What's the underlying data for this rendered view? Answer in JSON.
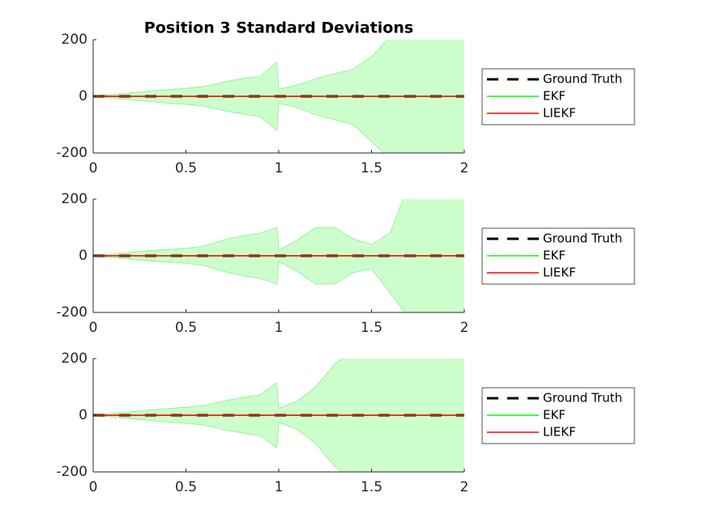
{
  "chart_data": [
    {
      "type": "line",
      "title": "Position 3 Standard Deviations",
      "x": [
        0,
        0.1,
        0.2,
        0.3,
        0.4,
        0.5,
        0.6,
        0.7,
        0.8,
        0.9,
        0.99,
        1.0,
        1.1,
        1.2,
        1.3,
        1.4,
        1.5,
        1.6,
        1.7,
        1.8,
        1.9,
        2.0
      ],
      "xlim": [
        0,
        2
      ],
      "xticks": [
        0,
        0.5,
        1,
        1.5,
        2
      ],
      "ylim": [
        -200,
        200
      ],
      "yticks": [
        -200,
        0,
        200
      ],
      "series": [
        {
          "name": "Ground Truth",
          "color": "#000000",
          "line_style": "dashed",
          "values": [
            0,
            0,
            0,
            0,
            0,
            0,
            0,
            0,
            0,
            0,
            0,
            0,
            0,
            0,
            0,
            0,
            0,
            0,
            0,
            0,
            0,
            0
          ]
        },
        {
          "name": "EKF",
          "color": "#00ff00",
          "band_color": "#ccffcc",
          "values": [
            0,
            0,
            0,
            0,
            0,
            0,
            0,
            0,
            0,
            0,
            0,
            0,
            0,
            0,
            0,
            0,
            0,
            0,
            0,
            0,
            0,
            0
          ],
          "upper": [
            2,
            6,
            12,
            18,
            24,
            28,
            35,
            50,
            62,
            70,
            120,
            25,
            40,
            62,
            80,
            95,
            140,
            210,
            230,
            260,
            300,
            350
          ],
          "lower": [
            -2,
            -6,
            -12,
            -18,
            -24,
            -28,
            -35,
            -50,
            -62,
            -72,
            -120,
            -25,
            -40,
            -65,
            -82,
            -100,
            -160,
            -220,
            -210,
            -250,
            -300,
            -350
          ]
        },
        {
          "name": "LIEKF",
          "color": "#ff0000",
          "values": [
            0,
            0,
            0,
            0,
            0,
            0,
            0,
            0,
            0,
            0,
            0,
            0,
            0,
            0,
            0,
            0,
            0,
            0,
            0,
            0,
            0,
            0
          ]
        }
      ]
    },
    {
      "type": "line",
      "x": [
        0,
        0.1,
        0.2,
        0.3,
        0.4,
        0.5,
        0.6,
        0.7,
        0.8,
        0.9,
        0.99,
        1.0,
        1.1,
        1.2,
        1.3,
        1.4,
        1.5,
        1.6,
        1.7,
        1.8,
        1.9,
        2.0
      ],
      "xlim": [
        0,
        2
      ],
      "xticks": [
        0,
        0.5,
        1,
        1.5,
        2
      ],
      "ylim": [
        -200,
        200
      ],
      "yticks": [
        -200,
        0,
        200
      ],
      "series": [
        {
          "name": "Ground Truth",
          "color": "#000000",
          "line_style": "dashed",
          "values": [
            0,
            0,
            0,
            0,
            0,
            0,
            0,
            0,
            0,
            0,
            0,
            0,
            0,
            0,
            0,
            0,
            0,
            0,
            0,
            0,
            0,
            0
          ]
        },
        {
          "name": "EKF",
          "color": "#00ff00",
          "band_color": "#ccffcc",
          "values": [
            0,
            0,
            0,
            0,
            0,
            0,
            0,
            0,
            0,
            0,
            0,
            0,
            0,
            0,
            0,
            0,
            0,
            0,
            0,
            0,
            0,
            0
          ],
          "upper": [
            2,
            6,
            12,
            18,
            22,
            26,
            35,
            55,
            70,
            80,
            100,
            20,
            55,
            100,
            100,
            60,
            40,
            80,
            250,
            300,
            350,
            400
          ],
          "lower": [
            -2,
            -6,
            -12,
            -18,
            -22,
            -26,
            -35,
            -55,
            -70,
            -80,
            -100,
            -20,
            -55,
            -100,
            -100,
            -60,
            -45,
            -130,
            -220,
            -300,
            -350,
            -400
          ]
        },
        {
          "name": "LIEKF",
          "color": "#ff0000",
          "values": [
            0,
            0,
            0,
            0,
            0,
            0,
            0,
            0,
            0,
            0,
            0,
            0,
            0,
            0,
            0,
            0,
            0,
            0,
            0,
            0,
            0,
            0
          ]
        }
      ]
    },
    {
      "type": "line",
      "x": [
        0,
        0.1,
        0.2,
        0.3,
        0.4,
        0.5,
        0.6,
        0.7,
        0.8,
        0.9,
        0.99,
        1.0,
        1.1,
        1.2,
        1.3,
        1.4,
        1.5,
        1.6,
        1.7,
        1.8,
        1.9,
        2.0
      ],
      "xlim": [
        0,
        2
      ],
      "xticks": [
        0,
        0.5,
        1,
        1.5,
        2
      ],
      "ylim": [
        -200,
        200
      ],
      "yticks": [
        -200,
        0,
        200
      ],
      "series": [
        {
          "name": "Ground Truth",
          "color": "#000000",
          "line_style": "dashed",
          "values": [
            0,
            0,
            0,
            0,
            0,
            0,
            0,
            0,
            0,
            0,
            0,
            0,
            0,
            0,
            0,
            0,
            0,
            0,
            0,
            0,
            0,
            0
          ]
        },
        {
          "name": "EKF",
          "color": "#00ff00",
          "band_color": "#ccffcc",
          "values": [
            0,
            0,
            0,
            0,
            0,
            0,
            0,
            0,
            0,
            0,
            0,
            0,
            0,
            0,
            0,
            0,
            0,
            0,
            0,
            0,
            0,
            0
          ],
          "upper": [
            2,
            6,
            12,
            18,
            24,
            28,
            35,
            50,
            62,
            72,
            115,
            25,
            50,
            100,
            180,
            230,
            260,
            280,
            300,
            320,
            350,
            380
          ],
          "lower": [
            -2,
            -6,
            -12,
            -18,
            -24,
            -28,
            -35,
            -50,
            -62,
            -72,
            -115,
            -25,
            -50,
            -100,
            -180,
            -230,
            -260,
            -280,
            -300,
            -320,
            -350,
            -380
          ]
        },
        {
          "name": "LIEKF",
          "color": "#ff0000",
          "values": [
            0,
            0,
            0,
            0,
            0,
            0,
            0,
            0,
            0,
            0,
            0,
            0,
            0,
            0,
            0,
            0,
            0,
            0,
            0,
            0,
            0,
            0
          ]
        }
      ]
    }
  ]
}
